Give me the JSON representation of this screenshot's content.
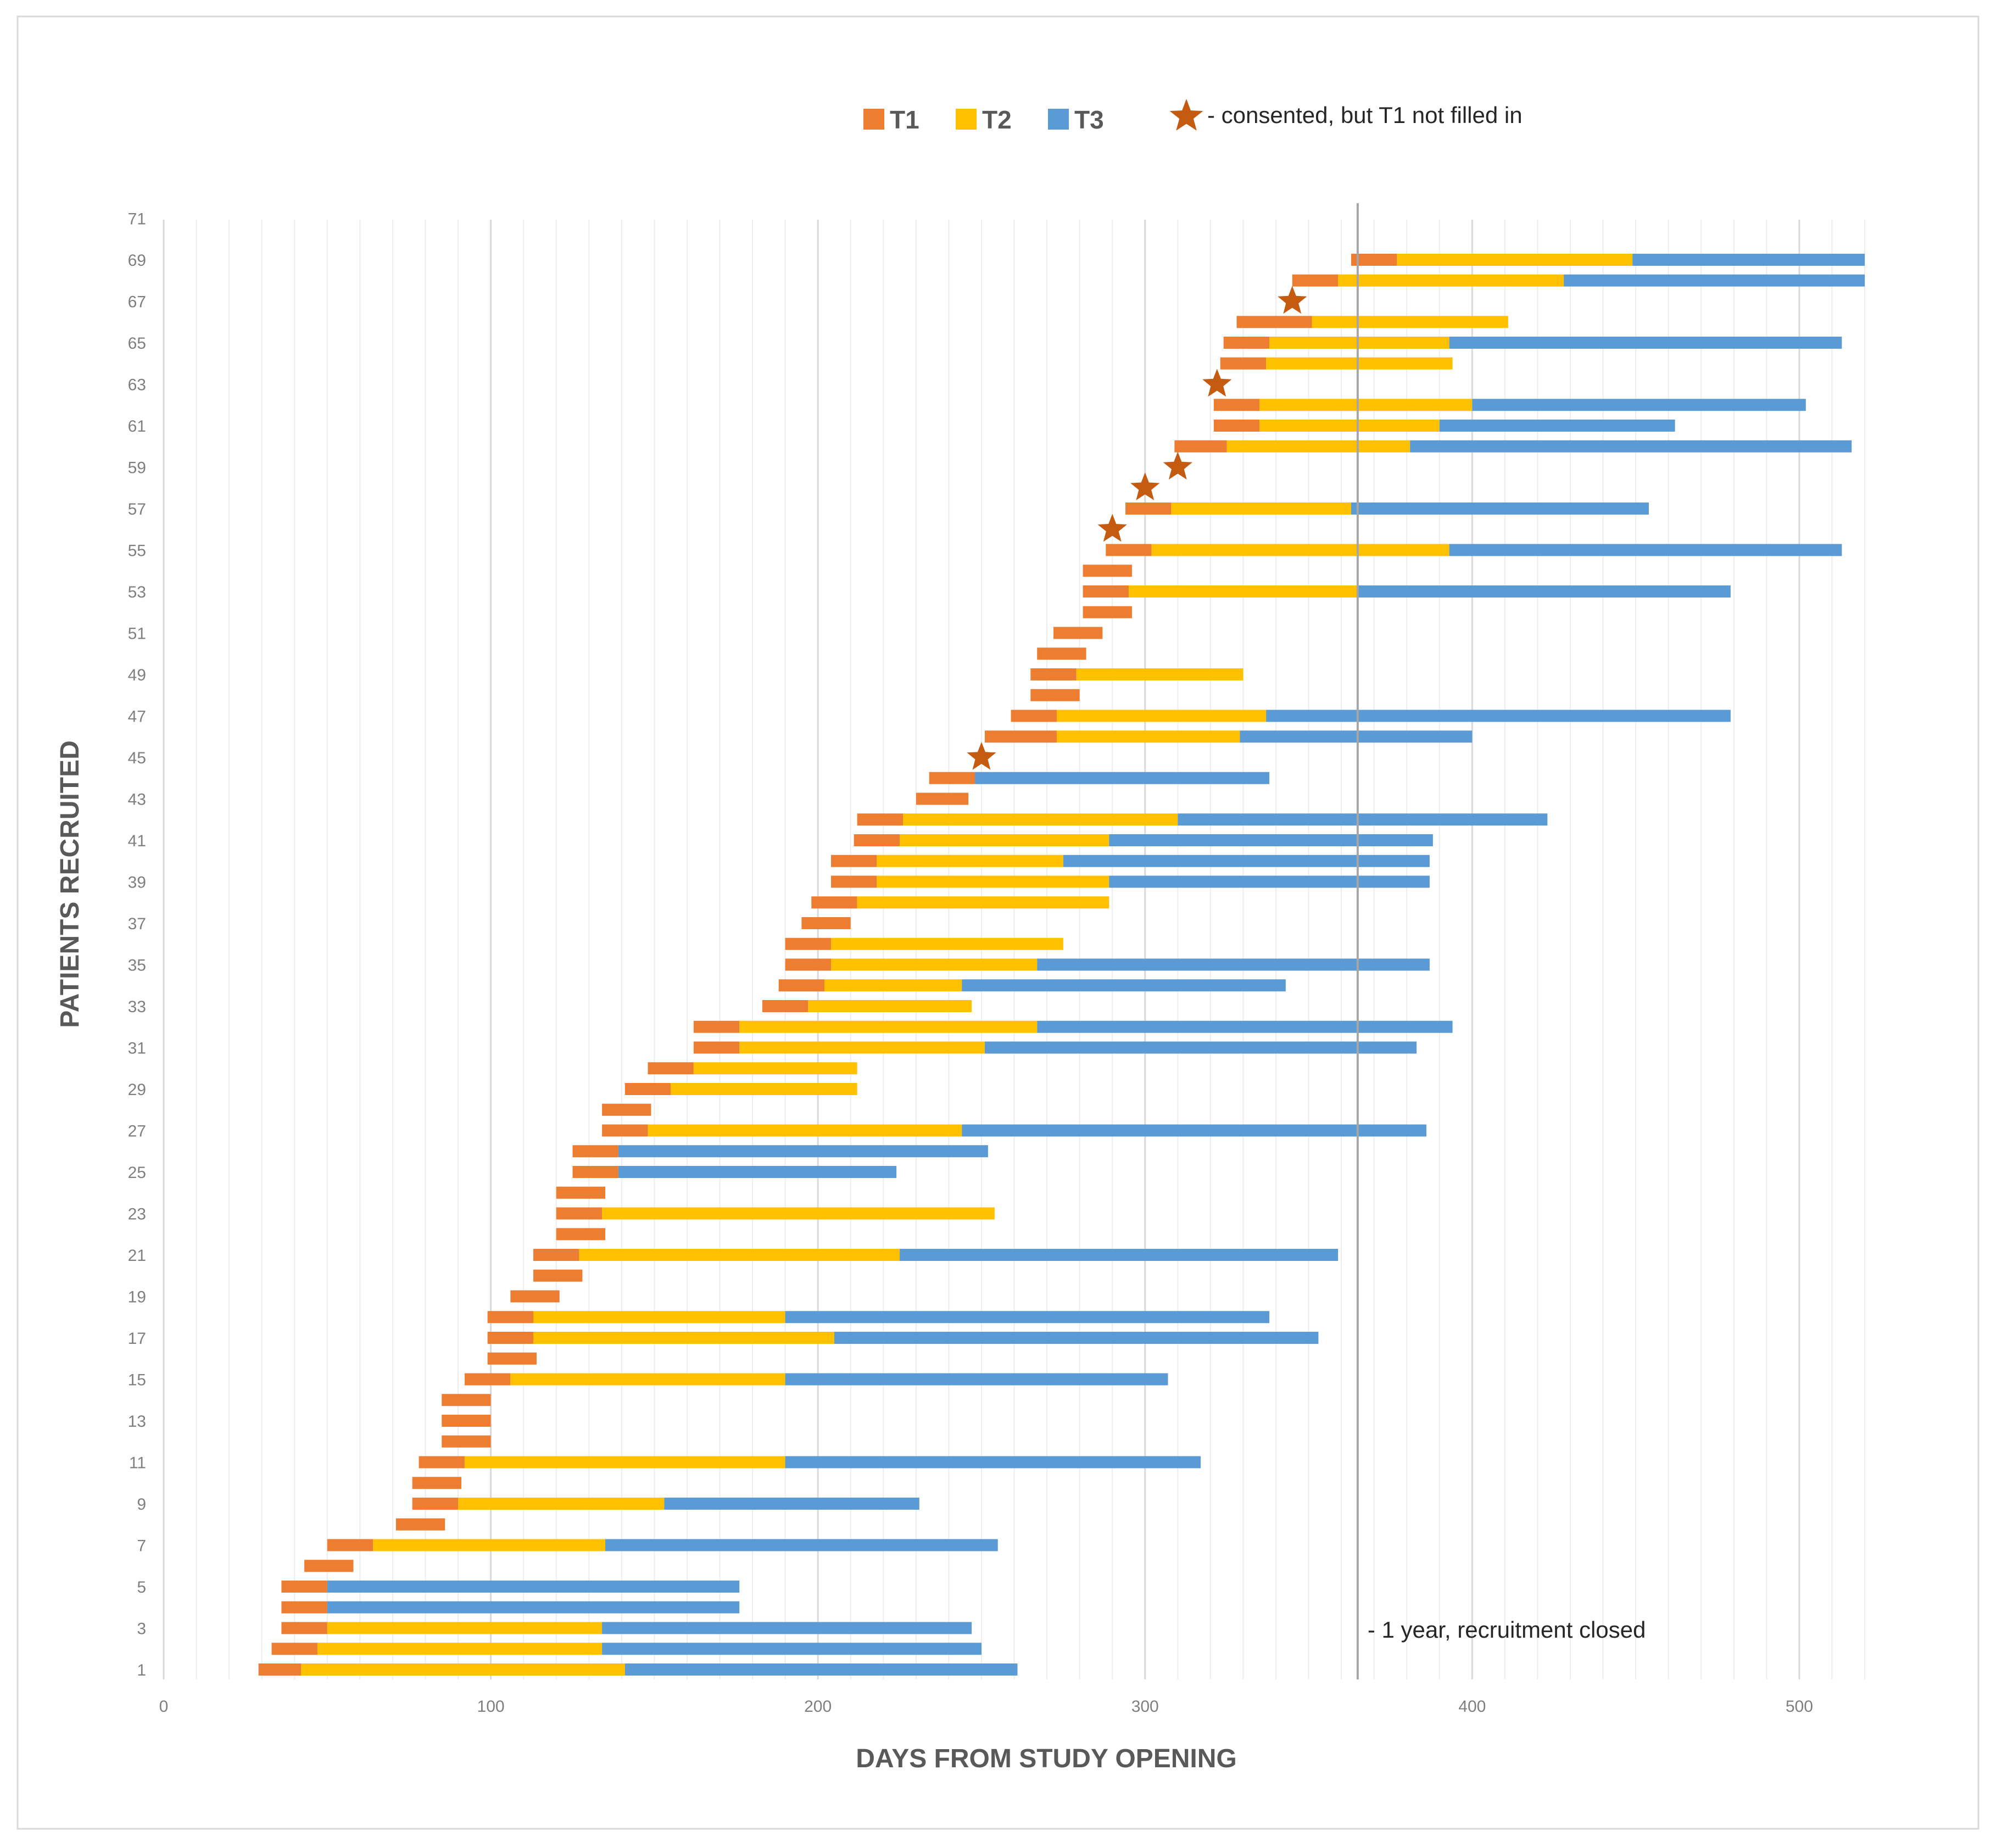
{
  "chart_data": {
    "type": "bar",
    "subtype": "floating-stacked-horizontal",
    "xlabel": "DAYS FROM STUDY OPENING",
    "ylabel": "PATIENTS RECRUITED",
    "xlim": [
      0,
      520
    ],
    "ylim": [
      0.5,
      71.5
    ],
    "x_major_ticks": [
      0,
      100,
      200,
      300,
      400,
      500
    ],
    "x_tick_labels": [
      "0",
      "100",
      "200",
      "300",
      "400",
      "500"
    ],
    "y_tick_labels": [
      "1",
      "3",
      "5",
      "7",
      "9",
      "11",
      "13",
      "15",
      "17",
      "19",
      "21",
      "23",
      "25",
      "27",
      "29",
      "31",
      "33",
      "35",
      "37",
      "39",
      "41",
      "43",
      "45",
      "47",
      "49",
      "51",
      "53",
      "55",
      "57",
      "59",
      "61",
      "63",
      "65",
      "67",
      "69",
      "71"
    ],
    "gridlines": "vertical, major every 100 days, minor every 10 days",
    "colors": {
      "T1": "#ED7D31",
      "T2": "#FFC000",
      "T3": "#5B9BD5",
      "star": "#C55A11",
      "refline": "#A6A6A6",
      "grid_major": "#D9D9D9",
      "grid_minor": "#EDEDED",
      "frame": "#D9D9D9"
    },
    "legend": {
      "position": "top",
      "entries": [
        {
          "name": "T1",
          "color": "#ED7D31"
        },
        {
          "name": "T2",
          "color": "#FFC000"
        },
        {
          "name": "T3",
          "color": "#5B9BD5"
        }
      ],
      "star_note": "- consented, but T1 not filled in"
    },
    "reference_line": {
      "x": 365,
      "label": "- 1 year, recruitment closed"
    },
    "segments_format": "[start_day, T1_end, T2_end, T3_end] — null where the phase is absent",
    "patients": [
      {
        "id": 1,
        "segments": [
          29,
          42,
          141,
          261
        ]
      },
      {
        "id": 2,
        "segments": [
          33,
          47,
          134,
          250
        ]
      },
      {
        "id": 3,
        "segments": [
          36,
          50,
          134,
          247
        ]
      },
      {
        "id": 4,
        "segments": [
          36,
          50,
          null,
          176
        ]
      },
      {
        "id": 5,
        "segments": [
          36,
          50,
          null,
          176
        ]
      },
      {
        "id": 6,
        "segments": [
          43,
          58,
          null,
          null
        ]
      },
      {
        "id": 7,
        "segments": [
          50,
          64,
          135,
          255
        ]
      },
      {
        "id": 8,
        "segments": [
          71,
          86,
          null,
          null
        ]
      },
      {
        "id": 9,
        "segments": [
          76,
          90,
          153,
          231
        ]
      },
      {
        "id": 10,
        "segments": [
          76,
          91,
          null,
          null
        ]
      },
      {
        "id": 11,
        "segments": [
          78,
          92,
          190,
          317
        ]
      },
      {
        "id": 12,
        "segments": [
          85,
          100,
          null,
          null
        ]
      },
      {
        "id": 13,
        "segments": [
          85,
          100,
          null,
          null
        ]
      },
      {
        "id": 14,
        "segments": [
          85,
          100,
          null,
          null
        ]
      },
      {
        "id": 15,
        "segments": [
          92,
          106,
          190,
          307
        ]
      },
      {
        "id": 16,
        "segments": [
          99,
          114,
          null,
          null
        ]
      },
      {
        "id": 17,
        "segments": [
          99,
          113,
          205,
          353
        ]
      },
      {
        "id": 18,
        "segments": [
          99,
          113,
          190,
          338
        ]
      },
      {
        "id": 19,
        "segments": [
          106,
          121,
          null,
          null
        ]
      },
      {
        "id": 20,
        "segments": [
          113,
          128,
          null,
          null
        ]
      },
      {
        "id": 21,
        "segments": [
          113,
          127,
          225,
          359
        ]
      },
      {
        "id": 22,
        "segments": [
          120,
          135,
          null,
          null
        ]
      },
      {
        "id": 23,
        "segments": [
          120,
          134,
          254,
          null
        ]
      },
      {
        "id": 24,
        "segments": [
          120,
          135,
          null,
          null
        ]
      },
      {
        "id": 25,
        "segments": [
          125,
          139,
          null,
          224
        ]
      },
      {
        "id": 26,
        "segments": [
          125,
          139,
          null,
          252
        ]
      },
      {
        "id": 27,
        "segments": [
          134,
          148,
          244,
          386
        ]
      },
      {
        "id": 28,
        "segments": [
          134,
          149,
          null,
          null
        ]
      },
      {
        "id": 29,
        "segments": [
          141,
          155,
          212,
          null
        ]
      },
      {
        "id": 30,
        "segments": [
          148,
          162,
          212,
          null
        ]
      },
      {
        "id": 31,
        "segments": [
          162,
          176,
          251,
          383
        ]
      },
      {
        "id": 32,
        "segments": [
          162,
          176,
          267,
          394
        ]
      },
      {
        "id": 33,
        "segments": [
          183,
          197,
          247,
          null
        ]
      },
      {
        "id": 34,
        "segments": [
          188,
          202,
          244,
          343
        ]
      },
      {
        "id": 35,
        "segments": [
          190,
          204,
          267,
          387
        ]
      },
      {
        "id": 36,
        "segments": [
          190,
          204,
          275,
          null
        ]
      },
      {
        "id": 37,
        "segments": [
          195,
          210,
          null,
          null
        ]
      },
      {
        "id": 38,
        "segments": [
          198,
          212,
          289,
          null
        ]
      },
      {
        "id": 39,
        "segments": [
          204,
          218,
          289,
          387
        ]
      },
      {
        "id": 40,
        "segments": [
          204,
          218,
          275,
          387
        ]
      },
      {
        "id": 41,
        "segments": [
          211,
          225,
          289,
          388
        ]
      },
      {
        "id": 42,
        "segments": [
          212,
          226,
          310,
          423
        ]
      },
      {
        "id": 43,
        "segments": [
          230,
          246,
          null,
          null
        ]
      },
      {
        "id": 44,
        "segments": [
          234,
          248,
          null,
          338
        ]
      },
      {
        "id": 45,
        "star": 250
      },
      {
        "id": 46,
        "segments": [
          251,
          273,
          329,
          400
        ]
      },
      {
        "id": 47,
        "segments": [
          259,
          273,
          337,
          479
        ]
      },
      {
        "id": 48,
        "segments": [
          265,
          280,
          null,
          null
        ]
      },
      {
        "id": 49,
        "segments": [
          265,
          279,
          330,
          null
        ]
      },
      {
        "id": 50,
        "segments": [
          267,
          282,
          null,
          null
        ]
      },
      {
        "id": 51,
        "segments": [
          272,
          287,
          null,
          null
        ]
      },
      {
        "id": 52,
        "segments": [
          281,
          296,
          null,
          null
        ]
      },
      {
        "id": 53,
        "segments": [
          281,
          295,
          365,
          479
        ]
      },
      {
        "id": 54,
        "segments": [
          281,
          296,
          null,
          null
        ]
      },
      {
        "id": 55,
        "segments": [
          288,
          302,
          393,
          513
        ]
      },
      {
        "id": 56,
        "star": 290
      },
      {
        "id": 57,
        "segments": [
          294,
          308,
          363,
          454
        ]
      },
      {
        "id": 58,
        "star": 300
      },
      {
        "id": 59,
        "star": 310
      },
      {
        "id": 60,
        "segments": [
          309,
          325,
          381,
          516
        ]
      },
      {
        "id": 61,
        "segments": [
          321,
          335,
          390,
          462
        ]
      },
      {
        "id": 62,
        "segments": [
          321,
          335,
          400,
          502
        ]
      },
      {
        "id": 63,
        "star": 322
      },
      {
        "id": 64,
        "segments": [
          323,
          337,
          394,
          null
        ]
      },
      {
        "id": 65,
        "segments": [
          324,
          338,
          393,
          513
        ]
      },
      {
        "id": 66,
        "segments": [
          328,
          351,
          411,
          null
        ]
      },
      {
        "id": 67,
        "star": 345
      },
      {
        "id": 68,
        "segments": [
          345,
          359,
          428,
          520
        ]
      },
      {
        "id": 69,
        "segments": [
          363,
          377,
          449,
          520
        ]
      }
    ]
  }
}
